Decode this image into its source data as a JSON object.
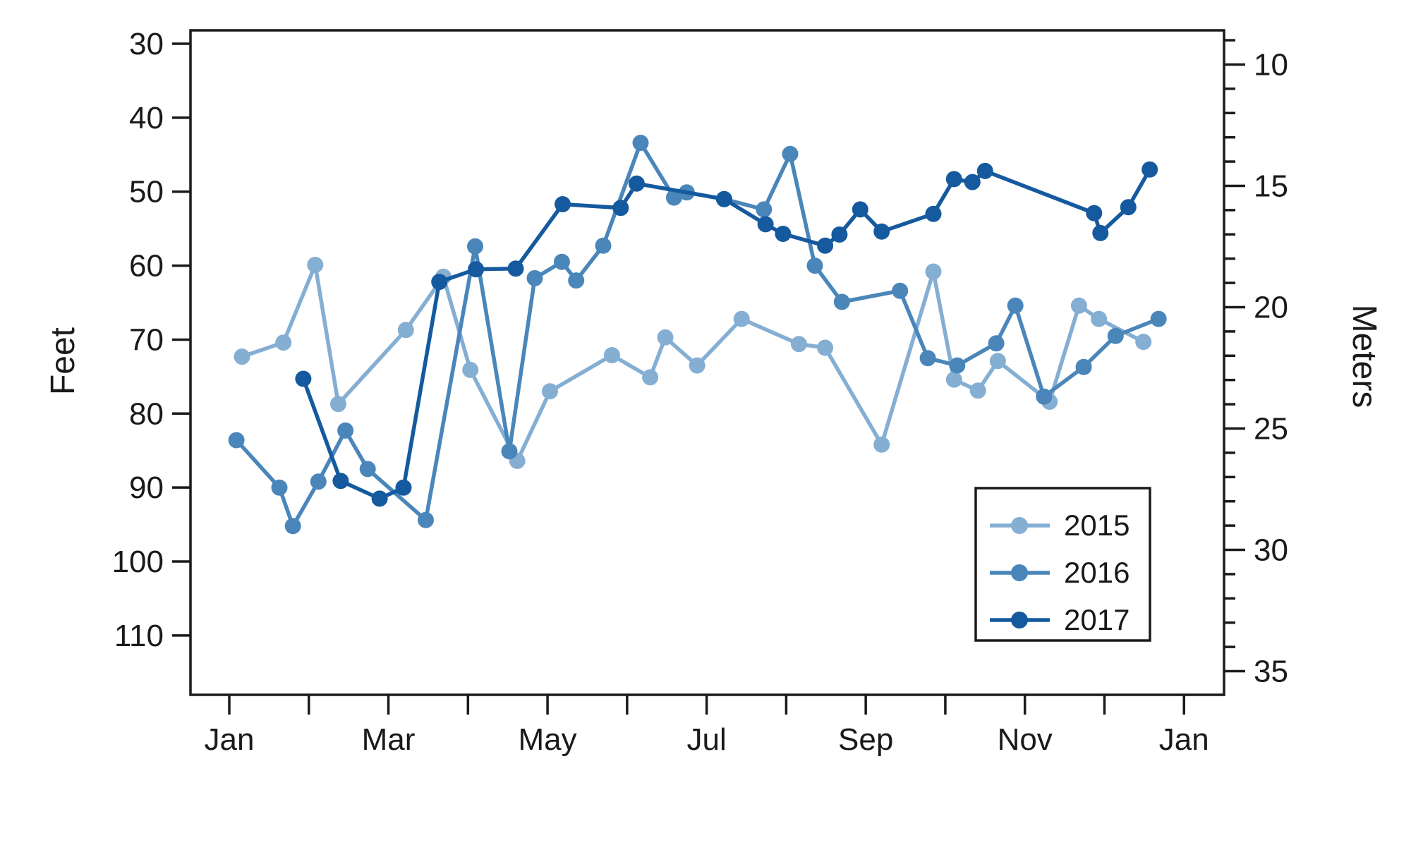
{
  "chart_data": {
    "type": "line",
    "title": "",
    "x_axis": {
      "unit": "months (0 = Jan 1, 12 = following Jan 1)",
      "tick_months": [
        "Jan",
        "Feb",
        "Mar",
        "Apr",
        "May",
        "Jun",
        "Jul",
        "Aug",
        "Sep",
        "Oct",
        "Nov",
        "Dec",
        "Jan"
      ],
      "labeled_months": [
        "Jan",
        "Mar",
        "May",
        "Jul",
        "Sep",
        "Nov",
        "Jan"
      ],
      "range": [
        -0.55,
        12.5
      ]
    },
    "y_left": {
      "label": "Feet",
      "ticks": [
        30,
        40,
        50,
        60,
        70,
        80,
        90,
        100,
        110
      ],
      "inverted_depth_axis": true,
      "range": [
        28.2,
        118.2
      ]
    },
    "y_right": {
      "label": "Meters",
      "major_ticks": [
        10,
        15,
        20,
        25,
        30,
        35
      ],
      "minor_tick_step": 1,
      "minor_tick_start": 9,
      "conversion_ft_per_m": 3.28084
    },
    "legend": {
      "position": "lower right",
      "entries": [
        "2015",
        "2016",
        "2017"
      ]
    },
    "axis_color": "#1a1a1a",
    "series": [
      {
        "name": "2015",
        "color": "#85AED3",
        "points": [
          [
            0.16,
            72.3
          ],
          [
            0.68,
            70.4
          ],
          [
            1.08,
            59.9
          ],
          [
            1.37,
            78.7
          ],
          [
            2.22,
            68.7
          ],
          [
            2.69,
            61.5
          ],
          [
            3.03,
            74.1
          ],
          [
            3.62,
            86.4
          ],
          [
            4.03,
            77.0
          ],
          [
            4.81,
            72.1
          ],
          [
            5.29,
            75.1
          ],
          [
            5.48,
            69.7
          ],
          [
            5.88,
            73.5
          ],
          [
            6.44,
            67.2
          ],
          [
            7.16,
            70.6
          ],
          [
            7.49,
            71.1
          ],
          [
            8.2,
            84.2
          ],
          [
            8.85,
            60.8
          ],
          [
            9.11,
            75.4
          ],
          [
            9.41,
            76.9
          ],
          [
            9.66,
            72.9
          ],
          [
            10.31,
            78.4
          ],
          [
            10.68,
            65.4
          ],
          [
            10.93,
            67.2
          ],
          [
            11.49,
            70.3
          ]
        ]
      },
      {
        "name": "2016",
        "color": "#4A86BA",
        "points": [
          [
            0.09,
            83.6
          ],
          [
            0.63,
            90.0
          ],
          [
            0.8,
            95.2
          ],
          [
            1.12,
            89.2
          ],
          [
            1.46,
            82.3
          ],
          [
            1.74,
            87.5
          ],
          [
            2.47,
            94.4
          ],
          [
            3.09,
            57.4
          ],
          [
            3.52,
            85.1
          ],
          [
            3.84,
            61.7
          ],
          [
            4.18,
            59.5
          ],
          [
            4.36,
            62.0
          ],
          [
            4.7,
            57.3
          ],
          [
            5.17,
            43.4
          ],
          [
            5.59,
            50.8
          ],
          [
            5.75,
            50.1
          ],
          [
            6.22,
            51.0
          ],
          [
            6.72,
            52.4
          ],
          [
            7.05,
            44.9
          ],
          [
            7.36,
            60.0
          ],
          [
            7.7,
            64.9
          ],
          [
            8.43,
            63.4
          ],
          [
            8.78,
            72.5
          ],
          [
            9.15,
            73.5
          ],
          [
            9.64,
            70.5
          ],
          [
            9.88,
            65.4
          ],
          [
            10.24,
            77.7
          ],
          [
            10.74,
            73.7
          ],
          [
            11.14,
            69.5
          ],
          [
            11.68,
            67.2
          ]
        ]
      },
      {
        "name": "2017",
        "color": "#155A9E",
        "points": [
          [
            0.93,
            75.3
          ],
          [
            1.4,
            89.1
          ],
          [
            1.89,
            91.5
          ],
          [
            2.19,
            90.0
          ],
          [
            2.64,
            62.2
          ],
          [
            3.1,
            60.5
          ],
          [
            3.6,
            60.4
          ],
          [
            4.19,
            51.7
          ],
          [
            4.92,
            52.2
          ],
          [
            5.12,
            48.9
          ],
          [
            6.22,
            51.0
          ],
          [
            6.74,
            54.4
          ],
          [
            6.96,
            55.7
          ],
          [
            7.49,
            57.3
          ],
          [
            7.67,
            55.8
          ],
          [
            7.93,
            52.4
          ],
          [
            8.2,
            55.4
          ],
          [
            8.85,
            53.0
          ],
          [
            9.11,
            48.3
          ],
          [
            9.34,
            48.7
          ],
          [
            9.5,
            47.2
          ],
          [
            10.87,
            52.9
          ],
          [
            10.95,
            55.6
          ],
          [
            11.3,
            52.1
          ],
          [
            11.57,
            47.0
          ]
        ]
      }
    ]
  }
}
